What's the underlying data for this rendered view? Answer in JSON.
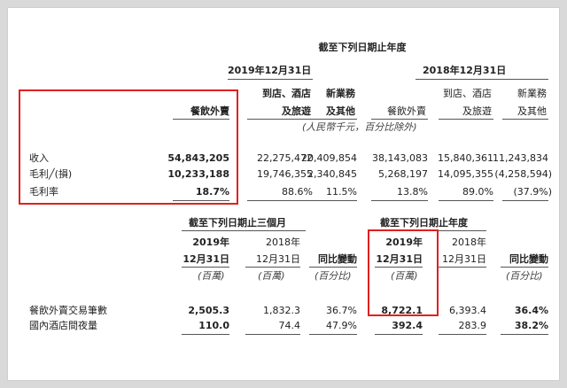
{
  "table1": {
    "period_header": "截至下列日期止年度",
    "year_2019": "2019年12月31日",
    "year_2018": "2018年12月31日",
    "col_food": "餐飲外賣",
    "col_instore_1": "到店、酒店",
    "col_instore_2": "及旅遊",
    "col_new_1": "新業務",
    "col_new_2": "及其他",
    "unit_note": "(人民幣千元，百分比除外)",
    "rows": [
      {
        "label": "收入",
        "values": [
          "54,843,205",
          "22,275,472",
          "20,409,854",
          "38,143,083",
          "15,840,361",
          "11,243,834"
        ]
      },
      {
        "label": "毛利╱(損)",
        "values": [
          "10,233,188",
          "19,746,355",
          "2,340,845",
          "5,268,197",
          "14,095,355",
          "(4,258,594)"
        ]
      },
      {
        "label": "毛利率",
        "values": [
          "18.7%",
          "88.6%",
          "11.5%",
          "13.8%",
          "89.0%",
          "(37.9%)"
        ]
      }
    ]
  },
  "table2": {
    "header_q": "截至下列日期止三個月",
    "header_y": "截至下列日期止年度",
    "y2019": "2019年",
    "y2018": "2018年",
    "date": "12月31日",
    "yoy": "同比變動",
    "unit_million": "(百萬)",
    "unit_percent": "(百分比)",
    "rows": [
      {
        "label": "餐飲外賣交易筆數",
        "values": [
          "2,505.3",
          "1,832.3",
          "36.7%",
          "8,722.1",
          "6,393.4",
          "36.4%"
        ]
      },
      {
        "label": "國內酒店間夜量",
        "values": [
          "110.0",
          "74.4",
          "47.9%",
          "392.4",
          "283.9",
          "38.2%"
        ]
      }
    ]
  },
  "highlight_color": "#e02020"
}
